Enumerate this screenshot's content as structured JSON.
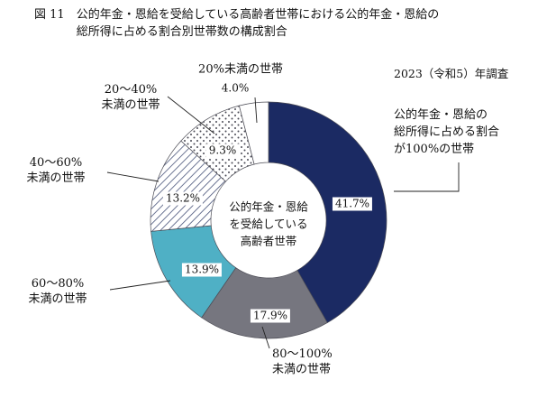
{
  "figure": {
    "label": "図 11",
    "title_line1": "公的年金・恩給を受給している高齢者世帯における公的年金・恩給の",
    "title_line2": "総所得に占める割合別世帯数の構成割合",
    "survey_note": "2023（令和5）年調査",
    "center_label": {
      "line1": "公的年金・恩給",
      "line2": "を受給している",
      "line3": "高齢者世帯"
    }
  },
  "chart_data": {
    "type": "pie",
    "donut": true,
    "direction": "clockwise",
    "start_angle_deg": 0,
    "title": "公的年金・恩給を受給している高齢者世帯における公的年金・恩給の総所得に占める割合別世帯数の構成割合",
    "unit": "%",
    "center_label": "公的年金・恩給を受給している高齢者世帯",
    "segments": [
      {
        "label": "公的年金・恩給の総所得に占める割合が100%の世帯",
        "value": 41.7,
        "display": "41.7%",
        "color": "#1b2a63",
        "style": "solid"
      },
      {
        "label": "80〜100%未満の世帯",
        "value": 17.9,
        "display": "17.9%",
        "color": "#76767f",
        "style": "solid"
      },
      {
        "label": "60〜80%未満の世帯",
        "value": 13.9,
        "display": "13.9%",
        "color": "#4fb0c5",
        "style": "solid"
      },
      {
        "label": "40〜60%未満の世帯",
        "value": 13.2,
        "display": "13.2%",
        "color": "#ffffff",
        "style": "hatch"
      },
      {
        "label": "20〜40%未満の世帯",
        "value": 9.3,
        "display": "9.3%",
        "color": "#ffffff",
        "style": "dots"
      },
      {
        "label": "20%未満の世帯",
        "value": 4.0,
        "display": "4.0%",
        "color": "#ffffff",
        "style": "plain"
      }
    ]
  },
  "callouts": {
    "under20": {
      "line1": "20%未満の世帯"
    },
    "r20_40": {
      "line1": "20〜40%",
      "line2": "未満の世帯"
    },
    "r40_60": {
      "line1": "40〜60%",
      "line2": "未満の世帯"
    },
    "r60_80": {
      "line1": "60〜80%",
      "line2": "未満の世帯"
    },
    "r80_100": {
      "line1": "80〜100%",
      "line2": "未満の世帯"
    },
    "r100": {
      "line1": "公的年金・恩給の",
      "line2": "総所得に占める割合",
      "line3": "が100%の世帯"
    }
  }
}
